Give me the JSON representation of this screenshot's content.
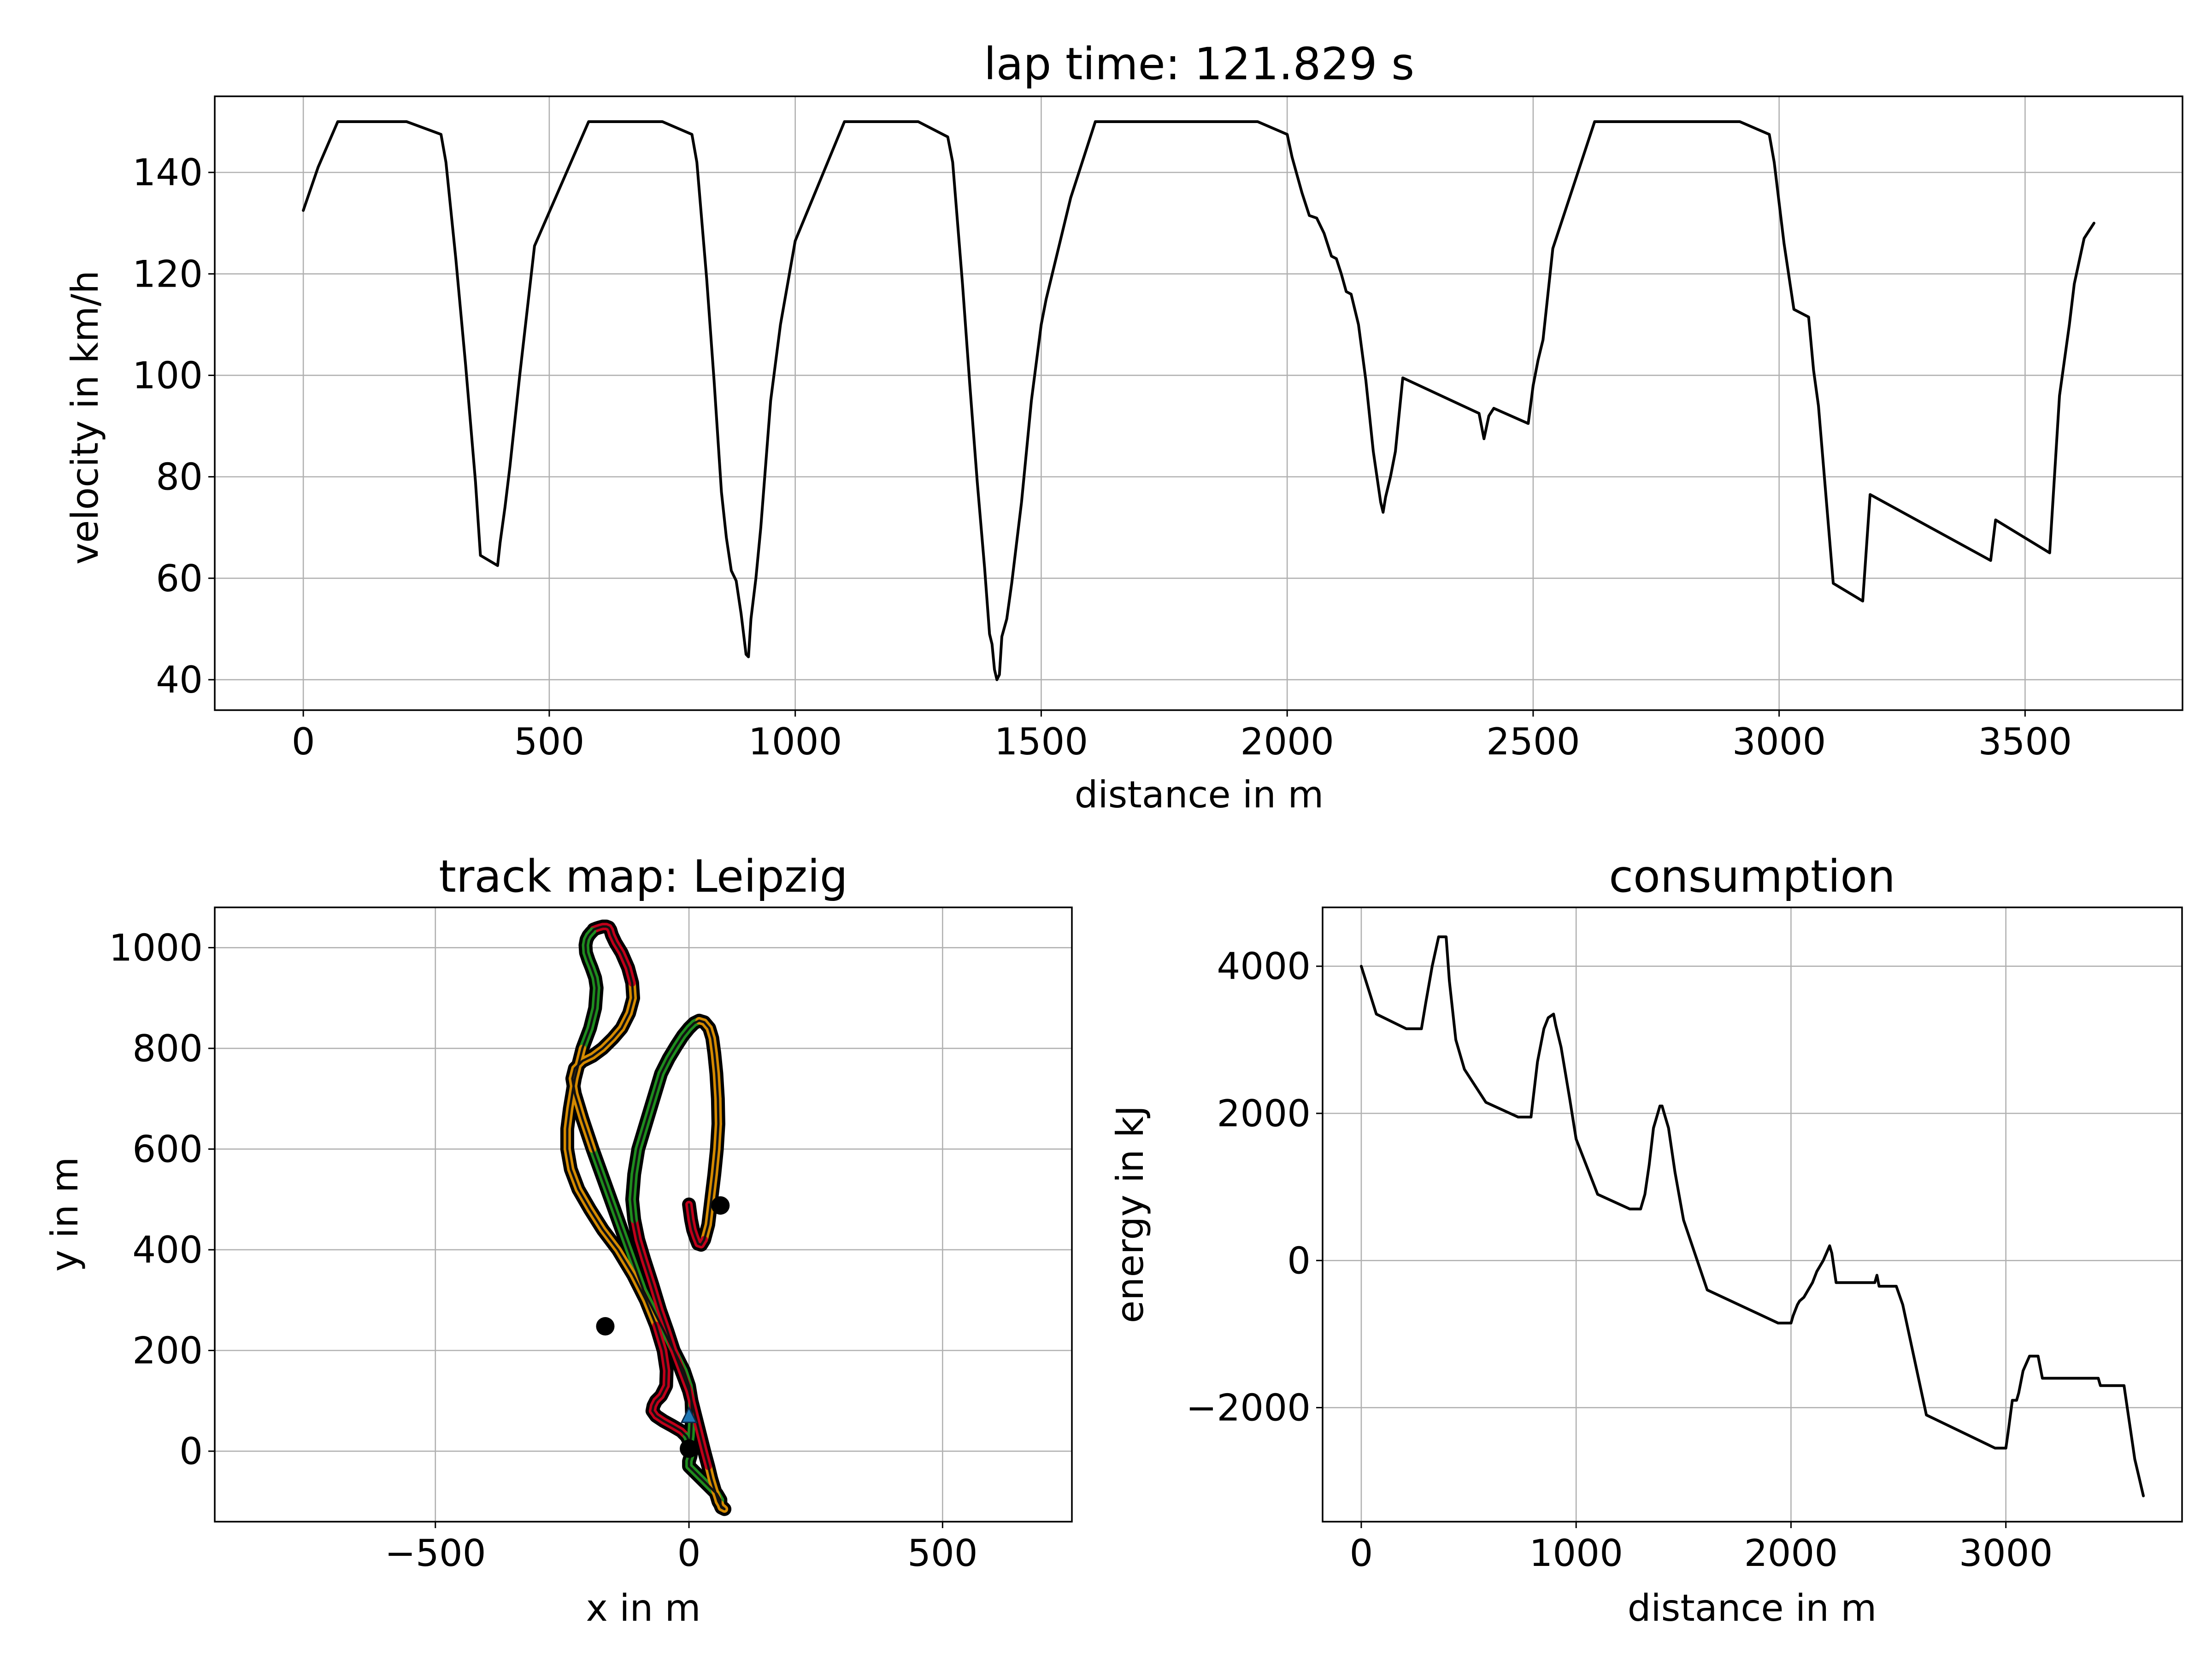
{
  "chart_data": [
    {
      "type": "line",
      "title": "lap time: 121.829 s",
      "xlabel": "distance in m",
      "ylabel": "velocity in km/h",
      "xlim": [
        -180,
        3820
      ],
      "ylim": [
        34,
        155
      ],
      "xticks": [
        0,
        500,
        1000,
        1500,
        2000,
        2500,
        3000,
        3500
      ],
      "xtick_labels": [
        "0",
        "500",
        "1000",
        "1500",
        "2000",
        "2500",
        "3000",
        "3500"
      ],
      "yticks": [
        40,
        60,
        80,
        100,
        120,
        140
      ],
      "ytick_labels": [
        "40",
        "60",
        "80",
        "100",
        "120",
        "140"
      ],
      "grid": true,
      "series": [
        {
          "color": "#000000",
          "x": [
            0,
            30,
            70,
            210,
            280,
            290,
            310,
            330,
            350,
            360,
            395,
            400,
            410,
            420,
            440,
            470,
            580,
            730,
            790,
            800,
            820,
            835,
            850,
            860,
            870,
            880,
            890,
            895,
            900,
            905,
            910,
            920,
            930,
            950,
            970,
            1000,
            1100,
            1250,
            1310,
            1320,
            1340,
            1355,
            1370,
            1385,
            1395,
            1400,
            1405,
            1410,
            1415,
            1420,
            1430,
            1440,
            1460,
            1480,
            1500,
            1510,
            1560,
            1610,
            1940,
            2000,
            2010,
            2030,
            2045,
            2060,
            2075,
            2090,
            2100,
            2110,
            2120,
            2130,
            2145,
            2160,
            2175,
            2190,
            2195,
            2200,
            2210,
            2220,
            2235,
            2390,
            2400,
            2410,
            2420,
            2490,
            2500,
            2510,
            2520,
            2540,
            2625,
            2920,
            2980,
            2990,
            3010,
            3030,
            3050,
            3060,
            3070,
            3080,
            3110,
            3170,
            3185,
            3430,
            3440,
            3550,
            3570,
            3590,
            3600,
            3620,
            3640
          ],
          "values": [
            132.5,
            141,
            150,
            150,
            147.5,
            142,
            123,
            102,
            79,
            64.5,
            62.5,
            67,
            74,
            82,
            100,
            125.5,
            150,
            150,
            147.5,
            142,
            119,
            99,
            77,
            68,
            61.5,
            59.5,
            53,
            49,
            45,
            44.5,
            52,
            60,
            70,
            95,
            110,
            126.5,
            150,
            150,
            147,
            142,
            118,
            98,
            79,
            62,
            49,
            47,
            42,
            40,
            41,
            48.5,
            52,
            59,
            75,
            95,
            110,
            115,
            135,
            150,
            150,
            147.5,
            143,
            136,
            131.5,
            131,
            128,
            123.5,
            123,
            120,
            116.5,
            116,
            110,
            99,
            85,
            75,
            73,
            76,
            80,
            85,
            99.5,
            92.5,
            87.5,
            92,
            93.5,
            90.5,
            98,
            103,
            107,
            125,
            150,
            150,
            147.5,
            142,
            126,
            113,
            112,
            111.5,
            101,
            94,
            59,
            55.5,
            76.5,
            63.5,
            71.5,
            65,
            96,
            110,
            118,
            127,
            130
          ]
        }
      ]
    },
    {
      "type": "line",
      "title": "track map: Leipzig",
      "xlabel": "x in m",
      "ylabel": "y in m",
      "xlim": [
        -935,
        755
      ],
      "ylim": [
        -140,
        1080
      ],
      "xticks": [
        -500,
        0,
        500
      ],
      "xtick_labels": [
        "−500",
        "0",
        "500"
      ],
      "yticks": [
        0,
        200,
        400,
        600,
        800,
        1000
      ],
      "ytick_labels": [
        "0",
        "200",
        "400",
        "600",
        "800",
        "1000"
      ],
      "grid": true,
      "track_colors": [
        "#1e8c1e",
        "#d48a00",
        "#c0001a"
      ],
      "track_centerline": {
        "x": [
          0,
          4,
          6,
          5,
          0,
          -10,
          -30,
          -60,
          -90,
          -115,
          -140,
          -165,
          -190,
          -210,
          -225,
          -230,
          -225,
          -210,
          -190,
          -170,
          -150,
          -133,
          -118,
          -110,
          -112,
          -120,
          -133,
          -145,
          -152,
          -155,
          -158,
          -163,
          -170,
          -177,
          -183,
          -188,
          -190,
          -193,
          -198,
          -202,
          -204,
          -203,
          -198,
          -192,
          -185,
          -182,
          -185,
          -195,
          -210,
          -225,
          -235,
          -240,
          -240,
          -233,
          -218,
          -195,
          -170,
          -140,
          -110,
          -85,
          -65,
          -50,
          -44,
          -45,
          -55,
          -65,
          -70,
          -72,
          -65,
          -50,
          -32,
          -15,
          -5,
          0,
          5,
          5,
          3,
          0,
          0,
          10,
          25,
          40,
          55,
          62,
          62,
          64,
          68,
          70,
          68,
          64,
          63,
          62,
          58,
          55,
          50,
          44,
          38,
          30,
          20,
          10,
          0,
          -15,
          -30,
          -43,
          -57,
          -72,
          -88,
          -100,
          -108,
          -112,
          -108,
          -100,
          -85,
          -70,
          -55,
          -40,
          -25,
          -12,
          0,
          10,
          20,
          30,
          40,
          46,
          50,
          54,
          57,
          58,
          55,
          50,
          44,
          38,
          30,
          24,
          18,
          13,
          8,
          4,
          0
        ],
        "y": [
          0,
          30,
          70,
          100,
          130,
          160,
          200,
          260,
          320,
          390,
          460,
          530,
          600,
          660,
          710,
          740,
          760,
          775,
          785,
          800,
          820,
          840,
          870,
          900,
          930,
          960,
          990,
          1010,
          1025,
          1035,
          1040,
          1042,
          1042,
          1040,
          1038,
          1036,
          1033,
          1030,
          1024,
          1016,
          1005,
          990,
          975,
          960,
          940,
          920,
          880,
          840,
          800,
          740,
          680,
          640,
          600,
          560,
          520,
          480,
          440,
          400,
          350,
          300,
          250,
          200,
          160,
          130,
          110,
          100,
          90,
          80,
          70,
          60,
          50,
          40,
          30,
          20,
          10,
          0,
          -10,
          -20,
          -30,
          -40,
          -55,
          -70,
          -85,
          -97,
          -105,
          -110,
          -113,
          -115,
          -114,
          -112,
          -110,
          -107,
          -100,
          -90,
          -75,
          -55,
          -30,
          0,
          40,
          80,
          120,
          160,
          200,
          240,
          280,
          330,
          380,
          420,
          460,
          500,
          550,
          600,
          650,
          700,
          750,
          780,
          805,
          825,
          840,
          850,
          855,
          852,
          840,
          820,
          790,
          750,
          700,
          650,
          600,
          550,
          500,
          450,
          420,
          410,
          412,
          425,
          440,
          460,
          490
        ],
        "_comment": ""
      },
      "markers": {
        "points": [
          {
            "x": 0,
            "y": 5
          },
          {
            "x": -165,
            "y": 248
          },
          {
            "x": 62,
            "y": 488
          }
        ],
        "start_arrow": {
          "x": 0,
          "y": 70,
          "color": "#1f77b4"
        }
      }
    },
    {
      "type": "line",
      "title": "consumption",
      "xlabel": "distance in m",
      "ylabel": "energy in kJ",
      "xlim": [
        -180,
        3820
      ],
      "ylim": [
        -3550,
        4800
      ],
      "xticks": [
        0,
        1000,
        2000,
        3000
      ],
      "xtick_labels": [
        "0",
        "1000",
        "2000",
        "3000"
      ],
      "yticks": [
        -2000,
        0,
        2000,
        4000
      ],
      "ytick_labels": [
        "−2000",
        "0",
        "2000",
        "4000"
      ],
      "grid": true,
      "series": [
        {
          "color": "#000000",
          "x": [
            0,
            70,
            210,
            280,
            300,
            330,
            360,
            395,
            410,
            440,
            480,
            580,
            730,
            790,
            800,
            820,
            850,
            870,
            895,
            905,
            930,
            970,
            1000,
            1100,
            1250,
            1300,
            1320,
            1340,
            1360,
            1390,
            1400,
            1410,
            1430,
            1460,
            1500,
            1610,
            1940,
            2000,
            2010,
            2030,
            2040,
            2060,
            2080,
            2100,
            2120,
            2150,
            2180,
            2190,
            2210,
            2230,
            2390,
            2400,
            2410,
            2490,
            2520,
            2630,
            2950,
            3000,
            3010,
            3030,
            3050,
            3060,
            3080,
            3110,
            3150,
            3170,
            3200,
            3430,
            3440,
            3550,
            3570,
            3590,
            3600,
            3620,
            3640
          ],
          "values": [
            4000,
            3350,
            3150,
            3150,
            3500,
            4000,
            4400,
            4400,
            3800,
            3000,
            2600,
            2150,
            1950,
            1950,
            2200,
            2700,
            3150,
            3300,
            3350,
            3200,
            2900,
            2200,
            1650,
            900,
            700,
            700,
            900,
            1300,
            1800,
            2100,
            2100,
            2000,
            1800,
            1200,
            550,
            -400,
            -850,
            -850,
            -750,
            -600,
            -550,
            -500,
            -400,
            -300,
            -150,
            0,
            200,
            100,
            -300,
            -300,
            -300,
            -200,
            -350,
            -350,
            -600,
            -2100,
            -2550,
            -2550,
            -2350,
            -1900,
            -1900,
            -1800,
            -1500,
            -1300,
            -1300,
            -1600,
            -1600,
            -1600,
            -1700,
            -1700,
            -2100,
            -2500,
            -2700,
            -2950,
            -3200
          ]
        }
      ]
    }
  ]
}
